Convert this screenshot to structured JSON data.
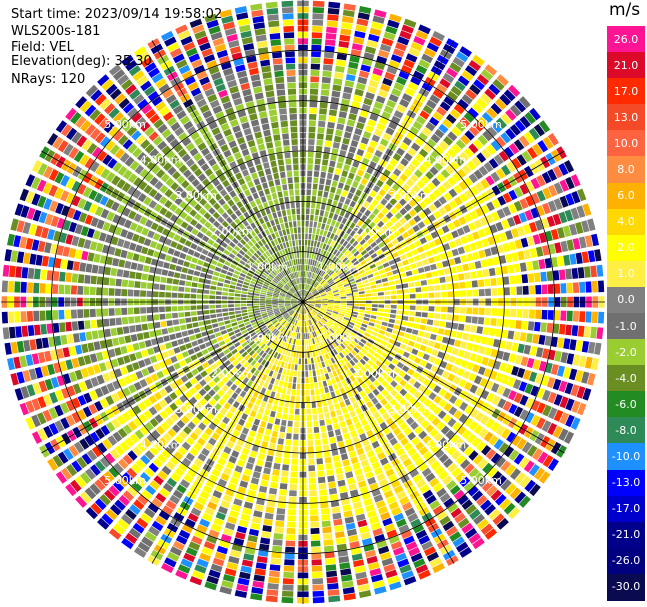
{
  "info": {
    "start_time": "Start time: 2023/09/14 19:58:02",
    "site": "WLS200s-181",
    "field": "Field: VEL",
    "elevation": "Elevation(deg): 35.30",
    "nrays": "NRays: 120"
  },
  "colorbar": {
    "unit": "m/s",
    "levels": [
      {
        "label": "26.0",
        "color": "#ff1493"
      },
      {
        "label": "21.0",
        "color": "#dc0a28"
      },
      {
        "label": "17.0",
        "color": "#ff2a00"
      },
      {
        "label": "13.0",
        "color": "#f44a28"
      },
      {
        "label": "10.0",
        "color": "#ff6340"
      },
      {
        "label": "8.0",
        "color": "#ff8c40"
      },
      {
        "label": "6.0",
        "color": "#ffb100"
      },
      {
        "label": "4.0",
        "color": "#ffd800"
      },
      {
        "label": "2.0",
        "color": "#ffff00"
      },
      {
        "label": "1.0",
        "color": "#ffee44"
      },
      {
        "label": "0.0",
        "color": "#808080"
      },
      {
        "label": "-1.0",
        "color": "#707070"
      },
      {
        "label": "-2.0",
        "color": "#9acd32"
      },
      {
        "label": "-4.0",
        "color": "#6b8e23"
      },
      {
        "label": "-6.0",
        "color": "#228b22"
      },
      {
        "label": "-8.0",
        "color": "#2e8b57"
      },
      {
        "label": "-10.0",
        "color": "#1e90ff"
      },
      {
        "label": "-13.0",
        "color": "#0000ff"
      },
      {
        "label": "-17.0",
        "color": "#0000cd"
      },
      {
        "label": "-21.0",
        "color": "#00008b"
      },
      {
        "label": "-26.0",
        "color": "#000080"
      },
      {
        "label": "-30.0",
        "color": "#0a0a50"
      }
    ]
  },
  "chart_data": {
    "type": "heatmap",
    "projection": "polar PPI",
    "field": "VEL",
    "unit": "m/s",
    "nrays": 120,
    "max_range_km": 6.0,
    "range_ring_labels": [
      "1.00km",
      "2.00km",
      "3.00km",
      "4.00km",
      "5.00km"
    ],
    "range_rings_km": [
      1,
      2,
      3,
      4,
      5
    ],
    "spoke_interval_deg": 30,
    "grid": true,
    "pattern_note": "near-field yellow (positive) east and south, green (negative) north and west; outer ranges noisy"
  }
}
